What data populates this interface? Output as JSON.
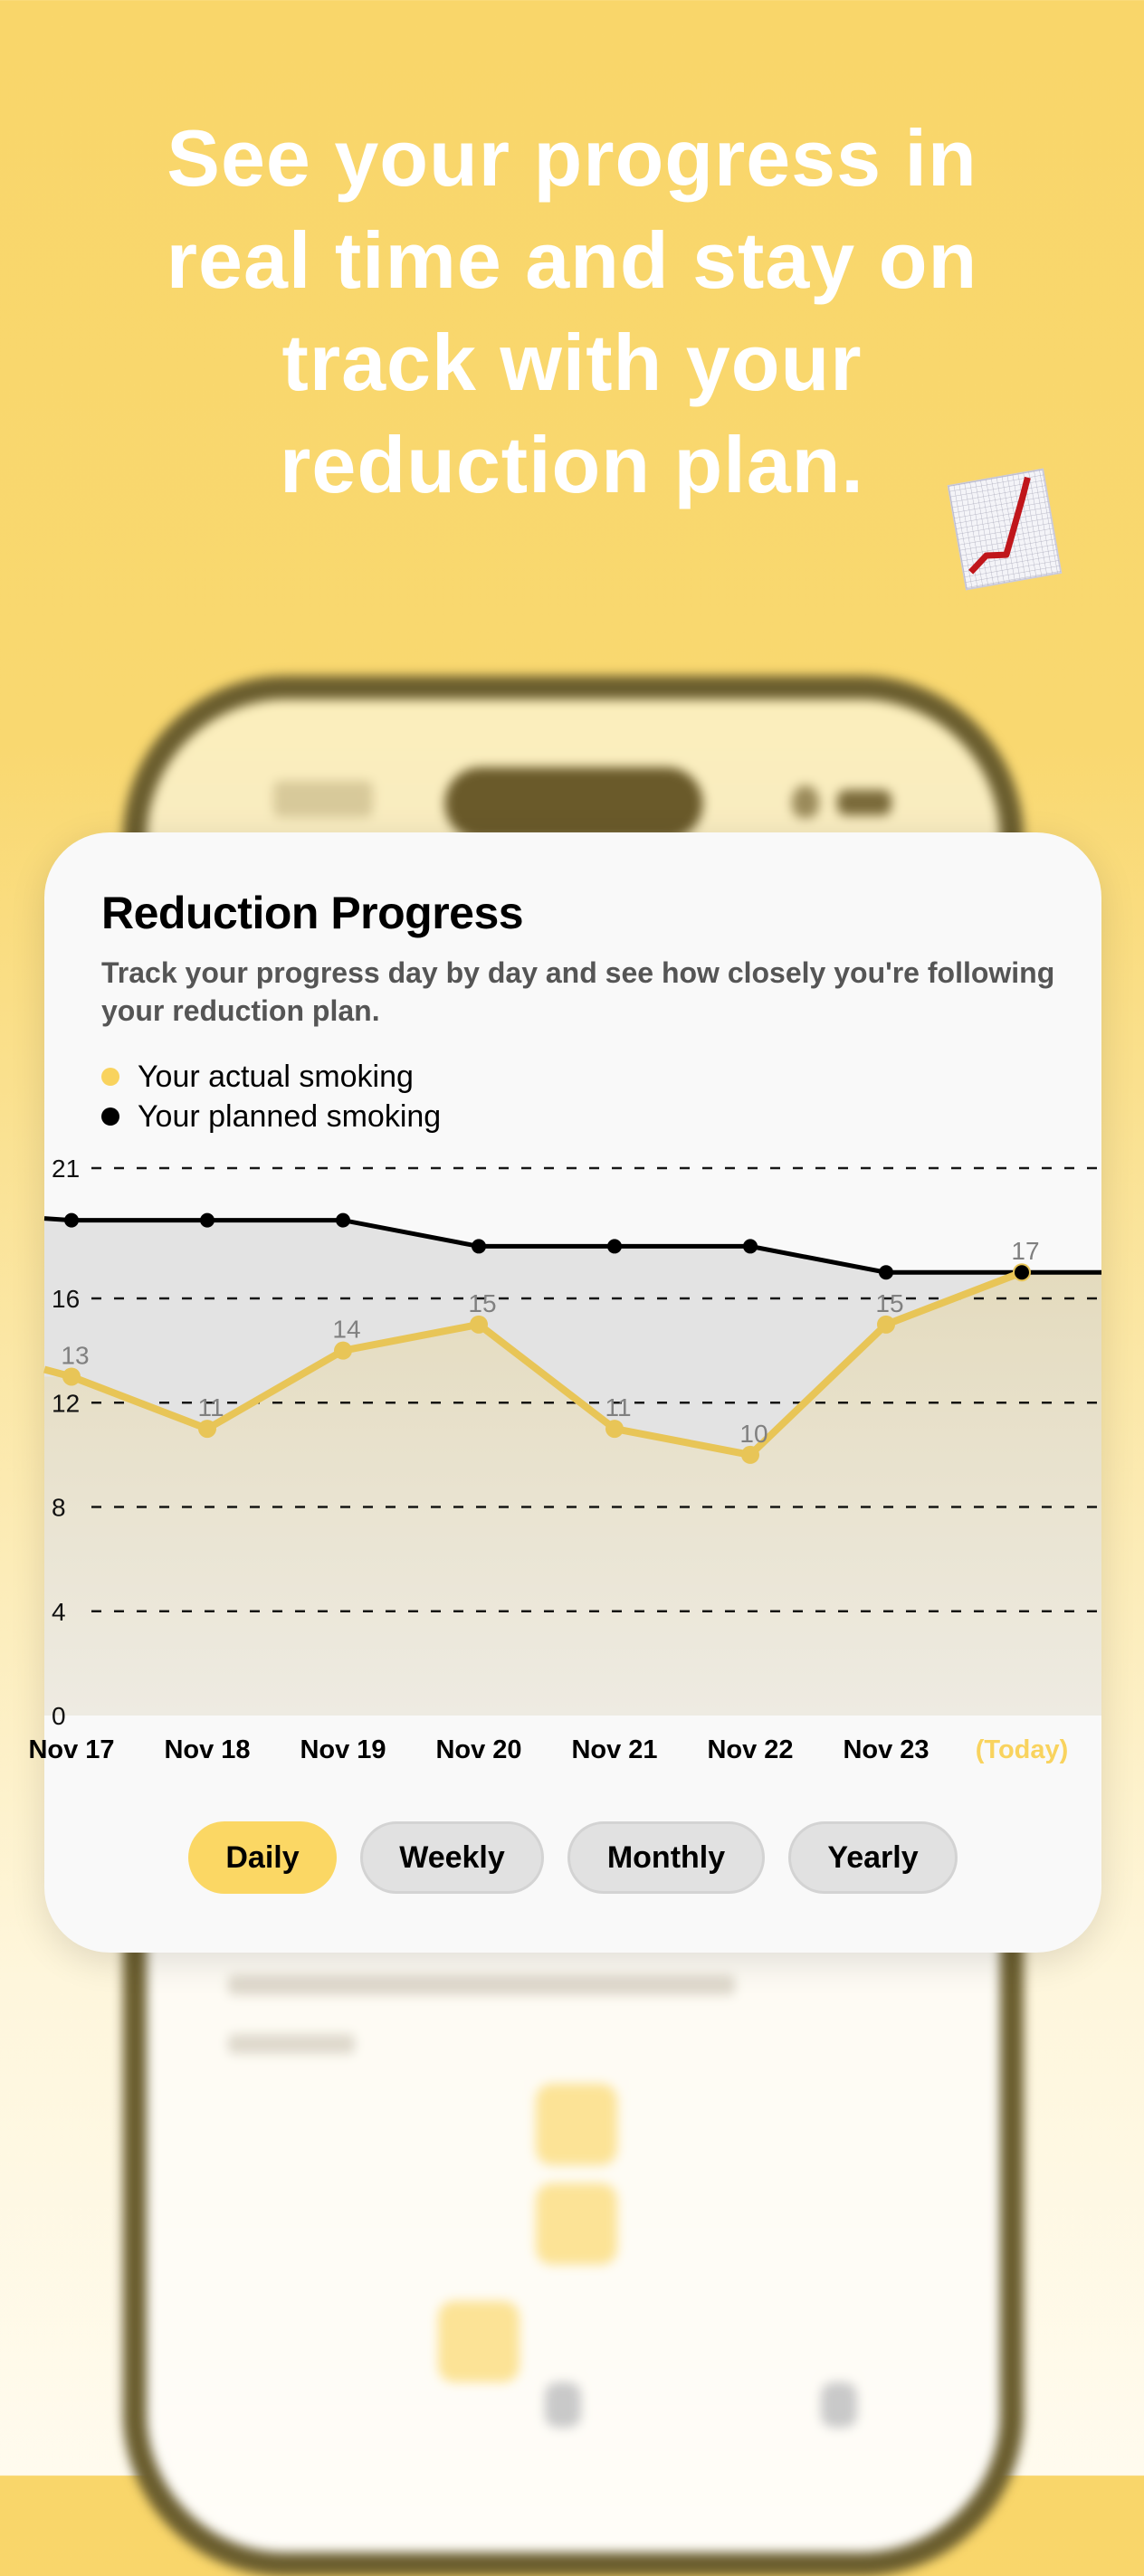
{
  "headline": {
    "lines": [
      "See your progress in",
      "real time and stay on",
      "track with your",
      "reduction plan."
    ],
    "emoji_icon": "chart-increasing-emoji"
  },
  "card": {
    "title": "Reduction Progress",
    "subtitle": "Track your progress day by day and see how closely you're following your reduction plan.",
    "legend": [
      {
        "label": "Your actual smoking",
        "color": "#F9D35E"
      },
      {
        "label": "Your planned smoking",
        "color": "#000000"
      }
    ],
    "tabs": [
      {
        "label": "Daily",
        "active": true
      },
      {
        "label": "Weekly",
        "active": false
      },
      {
        "label": "Monthly",
        "active": false
      },
      {
        "label": "Yearly",
        "active": false
      }
    ]
  },
  "colors": {
    "accent": "#FBD764",
    "actual_line": "#E8C557",
    "planned_line": "#000000",
    "today_label": "#F9D35E"
  },
  "chart_data": {
    "type": "line",
    "categories": [
      "Nov 17",
      "Nov 18",
      "Nov 19",
      "Nov 20",
      "Nov 21",
      "Nov 22",
      "Nov 23",
      "(Today)"
    ],
    "series": [
      {
        "name": "Your actual smoking",
        "values": [
          13,
          11,
          14,
          15,
          11,
          10,
          15,
          17
        ],
        "data_labels": true
      },
      {
        "name": "Your planned smoking",
        "values": [
          19,
          19,
          19,
          18,
          18,
          18,
          17,
          17
        ],
        "data_labels": false
      }
    ],
    "yticks": [
      0,
      4,
      8,
      12,
      16,
      21
    ],
    "ylim": [
      0,
      21
    ],
    "grid": "horizontal dashed",
    "legend": "top-left"
  }
}
